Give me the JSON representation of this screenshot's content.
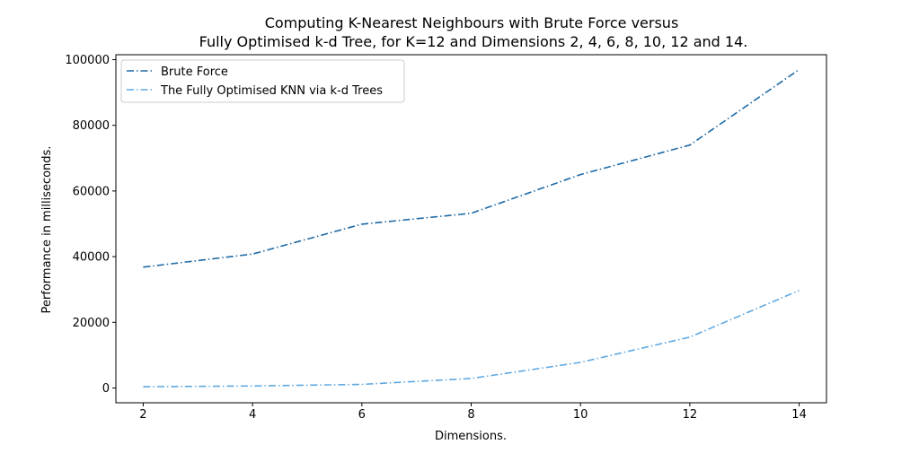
{
  "chart_data": {
    "type": "line",
    "title": "Computing K-Nearest Neighbours with Brute Force versus",
    "subtitle": "Fully Optimised k-d Tree, for K=12 and Dimensions 2, 4, 6, 8, 10, 12 and 14.",
    "xlabel": "Dimensions.",
    "ylabel": "Performance in milliseconds.",
    "x": [
      2,
      4,
      6,
      8,
      10,
      12,
      14
    ],
    "xticks": [
      2,
      4,
      6,
      8,
      10,
      12,
      14
    ],
    "yticks": [
      0,
      20000,
      40000,
      60000,
      80000,
      100000
    ],
    "xlim": [
      1.5,
      14.5
    ],
    "ylim": [
      -4500,
      101500
    ],
    "grid": false,
    "legend_position": "upper-left",
    "series": [
      {
        "name": "Brute Force",
        "color": "#1f6aa5",
        "linestyle": "dashdot",
        "values": [
          36800,
          40800,
          49900,
          53200,
          65000,
          74000,
          97000
        ]
      },
      {
        "name": "The Fully Optimised KNN via k-d Trees",
        "color": "#5fa8e0",
        "linestyle": "dashdot",
        "values": [
          400,
          600,
          1100,
          2900,
          7800,
          15500,
          29700
        ]
      }
    ]
  }
}
